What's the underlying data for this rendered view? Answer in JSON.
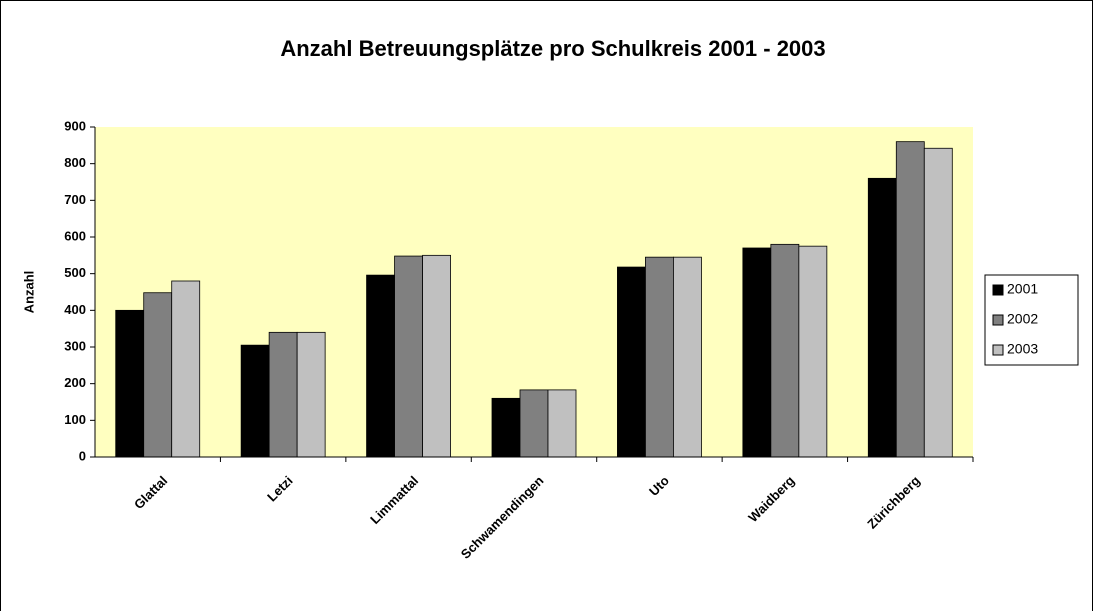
{
  "chart_data": {
    "type": "bar",
    "title": "Anzahl Betreuungsplätze pro Schulkreis 2001 - 2003",
    "y_label": "Anzahl",
    "categories": [
      "Glattal",
      "Letzi",
      "Limmattal",
      "Schwamendingen",
      "Uto",
      "Waidberg",
      "Zürichberg"
    ],
    "series": [
      {
        "name": "2001",
        "color": "#000000",
        "values": [
          400,
          305,
          496,
          160,
          518,
          570,
          760
        ]
      },
      {
        "name": "2002",
        "color": "#808080",
        "values": [
          448,
          340,
          548,
          183,
          545,
          580,
          860
        ]
      },
      {
        "name": "2003",
        "color": "#c0c0c0",
        "values": [
          480,
          340,
          550,
          183,
          545,
          575,
          842
        ]
      }
    ],
    "ylim": [
      0,
      900
    ],
    "yticks": [
      0,
      100,
      200,
      300,
      400,
      500,
      600,
      700,
      800,
      900
    ],
    "plot_background": "#ffffc0",
    "legend": "right"
  }
}
